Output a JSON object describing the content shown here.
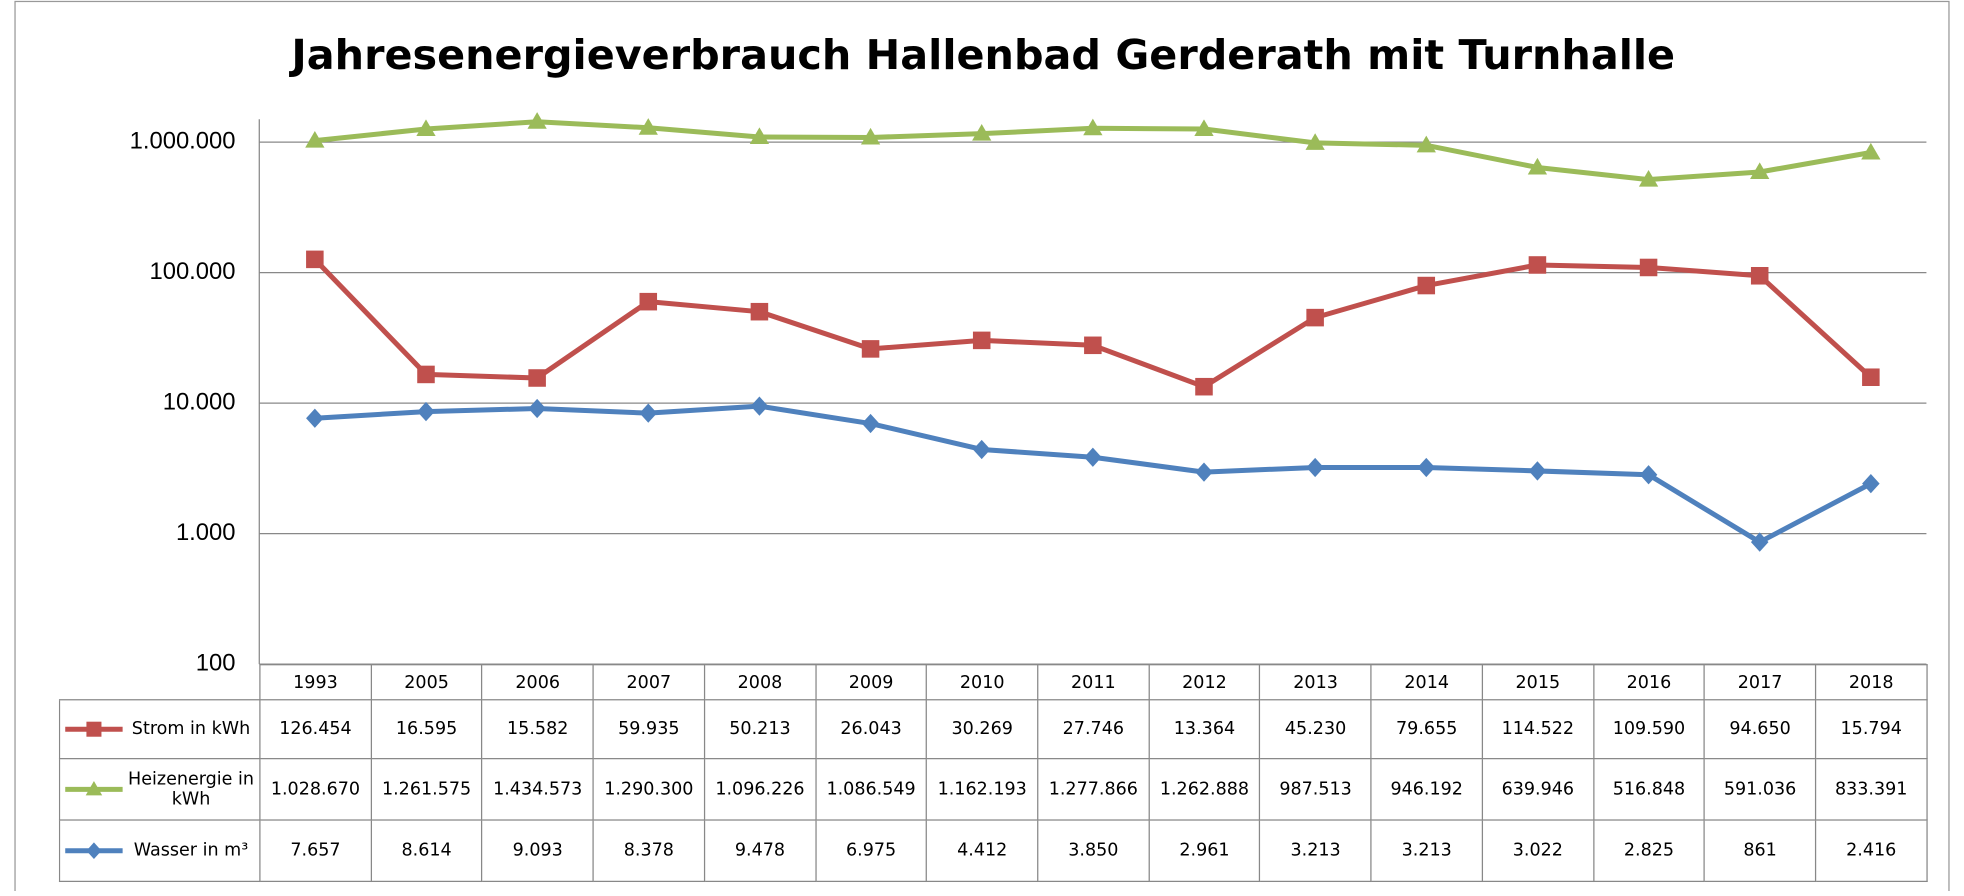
{
  "chart_data": {
    "type": "line",
    "title": "Jahresenergieverbrauch Hallenbad Gerderath mit Turnhalle",
    "categories": [
      "1993",
      "2005",
      "2006",
      "2007",
      "2008",
      "2009",
      "2010",
      "2011",
      "2012",
      "2013",
      "2014",
      "2015",
      "2016",
      "2017",
      "2018"
    ],
    "series": [
      {
        "name": "Strom in kWh",
        "color": "#c0504d",
        "marker": "square",
        "values": [
          126454,
          16595,
          15582,
          59935,
          50213,
          26043,
          30269,
          27746,
          13364,
          45230,
          79655,
          114522,
          109590,
          94650,
          15794
        ],
        "value_labels": [
          "126.454",
          "16.595",
          "15.582",
          "59.935",
          "50.213",
          "26.043",
          "30.269",
          "27.746",
          "13.364",
          "45.230",
          "79.655",
          "114.522",
          "109.590",
          "94.650",
          "15.794"
        ]
      },
      {
        "name": "Heizenergie in kWh",
        "color": "#9bbb59",
        "marker": "triangle",
        "values": [
          1028670,
          1261575,
          1434573,
          1290300,
          1096226,
          1086549,
          1162193,
          1277866,
          1262888,
          987513,
          946192,
          639946,
          516848,
          591036,
          833391
        ],
        "value_labels": [
          "1.028.670",
          "1.261.575",
          "1.434.573",
          "1.290.300",
          "1.096.226",
          "1.086.549",
          "1.162.193",
          "1.277.866",
          "1.262.888",
          "987.513",
          "946.192",
          "639.946",
          "516.848",
          "591.036",
          "833.391"
        ]
      },
      {
        "name": "Wasser in m³",
        "color": "#4f81bd",
        "marker": "diamond",
        "values": [
          7657,
          8614,
          9093,
          8378,
          9478,
          6975,
          4412,
          3850,
          2961,
          3213,
          3213,
          3022,
          2825,
          861,
          2416
        ],
        "value_labels": [
          "7.657",
          "8.614",
          "9.093",
          "8.378",
          "9.478",
          "6.975",
          "4.412",
          "3.850",
          "2.961",
          "3.213",
          "3.213",
          "3.022",
          "2.825",
          "861",
          "2.416"
        ]
      }
    ],
    "log_scale": true,
    "grid": true,
    "ylim": [
      100,
      1500000
    ],
    "yticks": [
      100,
      {
        "value": 1000,
        "label": "1.000"
      },
      {
        "value": 10000,
        "label": "10.000"
      },
      {
        "value": 100000,
        "label": "100.000"
      },
      {
        "value": 1000000,
        "label": "1.000.000"
      }
    ]
  }
}
